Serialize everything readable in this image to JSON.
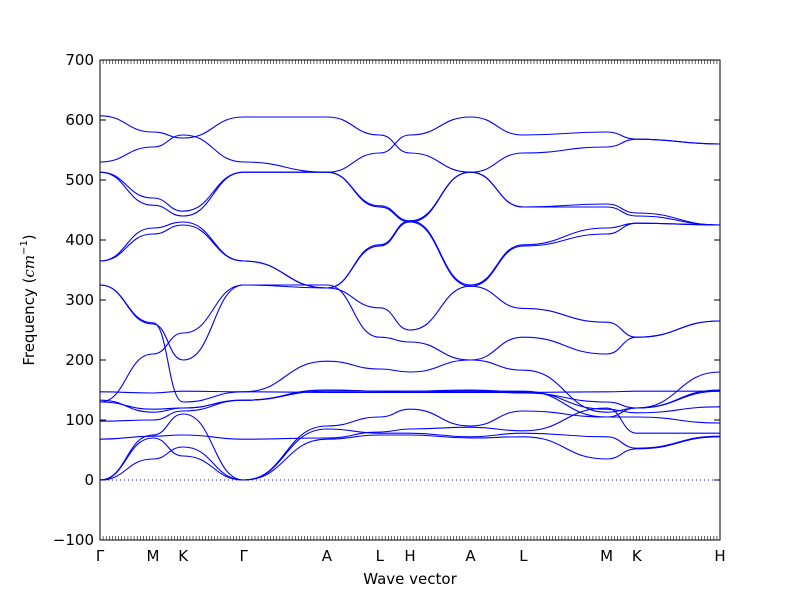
{
  "chart_data": {
    "type": "line",
    "title": "",
    "xlabel": "Wave vector",
    "ylabel_prefix": "Frequency (",
    "ylabel_unit_base": "cm",
    "ylabel_unit_exp": "−1",
    "ylabel_suffix": ")",
    "ylim": [
      -100,
      700
    ],
    "yticks": [
      -100,
      0,
      100,
      200,
      300,
      400,
      500,
      600,
      700
    ],
    "xlim": [
      0,
      20.5
    ],
    "grid": false,
    "line_color": "#0000ff",
    "zero_line": true,
    "high_symmetry_points": [
      {
        "label": "Γ",
        "x": 0
      },
      {
        "label": "M",
        "x": 1.75
      },
      {
        "label": "K",
        "x": 2.75
      },
      {
        "label": "Γ",
        "x": 4.75
      },
      {
        "label": "A",
        "x": 7.5
      },
      {
        "label": "L",
        "x": 9.25
      },
      {
        "label": "H",
        "x": 10.25
      },
      {
        "label": "A",
        "x": 12.25
      },
      {
        "label": "L",
        "x": 14.0
      },
      {
        "label": "M",
        "x": 16.75
      },
      {
        "label": "K",
        "x": 17.75
      },
      {
        "label": "H",
        "x": 20.5
      }
    ],
    "x": [
      0,
      1.75,
      2.75,
      4.75,
      7.5,
      9.25,
      10.25,
      12.25,
      14.0,
      16.75,
      17.75,
      20.5
    ],
    "series": [
      {
        "values": [
          0,
          35,
          55,
          0,
          68,
          75,
          75,
          70,
          72,
          35,
          52,
          72
        ]
      },
      {
        "values": [
          0,
          70,
          40,
          0,
          85,
          78,
          78,
          72,
          78,
          72,
          53,
          73
        ]
      },
      {
        "values": [
          0,
          75,
          110,
          0,
          90,
          105,
          118,
          90,
          115,
          105,
          105,
          95
        ]
      },
      {
        "values": [
          68,
          73,
          75,
          68,
          70,
          80,
          85,
          88,
          82,
          120,
          78,
          78
        ]
      },
      {
        "values": [
          98,
          100,
          115,
          133,
          150,
          148,
          148,
          150,
          147,
          118,
          112,
          122
        ]
      },
      {
        "values": [
          130,
          118,
          120,
          133,
          148,
          148,
          148,
          148,
          148,
          105,
          120,
          148
        ]
      },
      {
        "values": [
          133,
          113,
          120,
          133,
          150,
          148,
          146,
          148,
          145,
          130,
          120,
          150
        ]
      },
      {
        "values": [
          147,
          145,
          148,
          147,
          146,
          146,
          146,
          146,
          146,
          147,
          148,
          148
        ]
      },
      {
        "values": [
          325,
          262,
          130,
          147,
          198,
          185,
          180,
          200,
          183,
          113,
          120,
          180
        ]
      },
      {
        "values": [
          130,
          210,
          245,
          325,
          325,
          238,
          230,
          200,
          238,
          210,
          238,
          265
        ]
      },
      {
        "values": [
          325,
          260,
          200,
          325,
          320,
          287,
          250,
          323,
          286,
          263,
          238,
          265
        ]
      },
      {
        "values": [
          365,
          410,
          425,
          365,
          320,
          390,
          430,
          513,
          455,
          455,
          440,
          425
        ]
      },
      {
        "values": [
          365,
          420,
          430,
          365,
          320,
          392,
          432,
          513,
          455,
          460,
          445,
          425
        ]
      },
      {
        "values": [
          513,
          458,
          440,
          513,
          513,
          455,
          430,
          323,
          390,
          410,
          428,
          425
        ]
      },
      {
        "values": [
          513,
          470,
          448,
          513,
          513,
          457,
          432,
          325,
          392,
          420,
          428,
          425
        ]
      },
      {
        "values": [
          530,
          555,
          575,
          530,
          513,
          545,
          575,
          605,
          575,
          580,
          568,
          560
        ]
      },
      {
        "values": [
          607,
          580,
          570,
          605,
          605,
          575,
          545,
          513,
          545,
          555,
          568,
          560
        ]
      }
    ]
  }
}
